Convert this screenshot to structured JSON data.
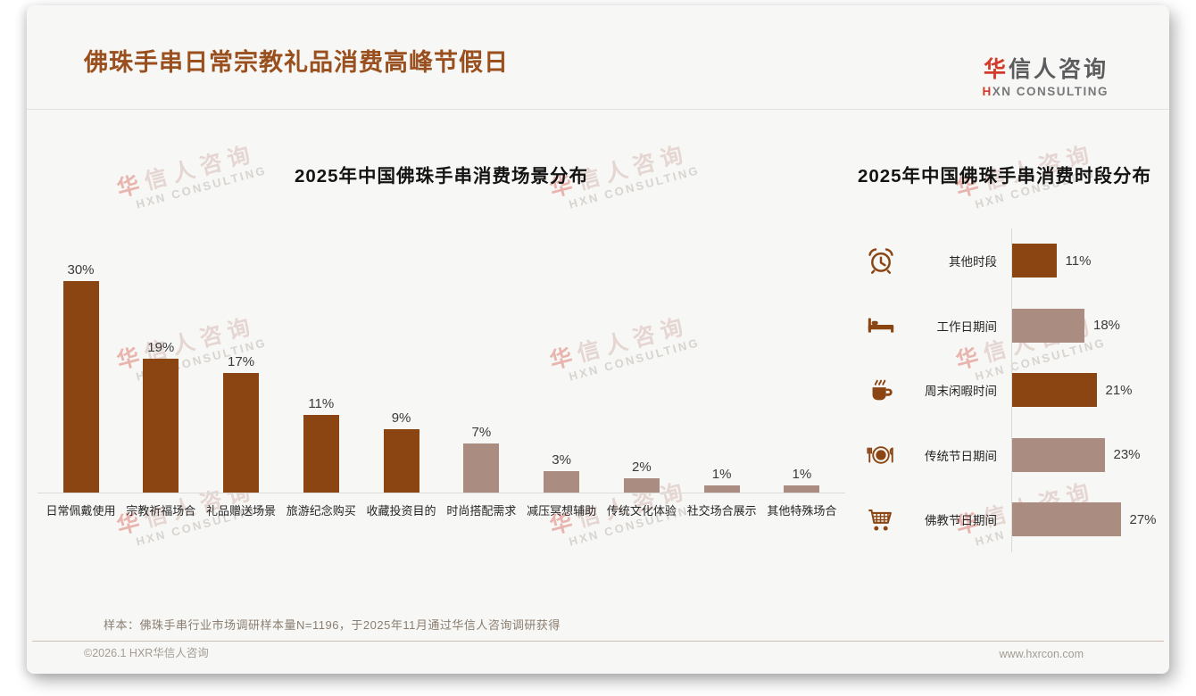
{
  "header": {
    "title": "佛珠手串日常宗教礼品消费高峰节假日",
    "logo": {
      "cn_accent": "华",
      "cn_rest": "信人咨询",
      "en_accent": "H",
      "en_rest": "XN CONSULTING"
    }
  },
  "watermark": {
    "cn_accent": "华",
    "cn_rest": "信人咨询",
    "en": "HXN CONSULTING"
  },
  "chart_data": [
    {
      "type": "bar",
      "orientation": "vertical",
      "title": "2025年中国佛珠手串消费场景分布",
      "categories": [
        "日常佩戴使用",
        "宗教祈福场合",
        "礼品赠送场景",
        "旅游纪念购买",
        "收藏投资目的",
        "时尚搭配需求",
        "减压冥想辅助",
        "传统文化体验",
        "社交场合展示",
        "其他特殊场合"
      ],
      "values": [
        30,
        19,
        17,
        11,
        9,
        7,
        3,
        2,
        1,
        1
      ],
      "unit": "%",
      "value_labels": [
        "30%",
        "19%",
        "17%",
        "11%",
        "9%",
        "7%",
        "3%",
        "2%",
        "1%",
        "1%"
      ],
      "bar_styles": [
        "dark",
        "dark",
        "dark",
        "dark",
        "dark",
        "light",
        "light",
        "light",
        "light",
        "light"
      ],
      "bar_palette": {
        "dark": "#8B4513",
        "light": "#AA8C80"
      },
      "ylim": [
        0,
        32
      ],
      "grid": false,
      "data_labels": "above-bar",
      "legend": "none"
    },
    {
      "type": "bar",
      "orientation": "horizontal",
      "title": "2025年中国佛珠手串消费时段分布",
      "categories": [
        "其他时段",
        "工作日期间",
        "周末闲暇时间",
        "传统节日期间",
        "佛教节日期间"
      ],
      "values": [
        11,
        18,
        21,
        23,
        27
      ],
      "unit": "%",
      "value_labels": [
        "11%",
        "18%",
        "21%",
        "23%",
        "27%"
      ],
      "icons": [
        "alarm-clock-icon",
        "bed-icon",
        "coffee-cup-icon",
        "dining-plate-icon",
        "shopping-cart-icon"
      ],
      "bar_styles": [
        "dark",
        "light",
        "dark",
        "light",
        "light"
      ],
      "bar_palette": {
        "dark": "#8B4513",
        "light": "#AA8C80"
      },
      "xlim": [
        0,
        30
      ],
      "grid": false,
      "data_labels": "right-of-bar",
      "legend": "none"
    }
  ],
  "footnote": "样本：佛珠手串行业市场调研样本量N=1196，于2025年11月通过华信人咨询调研获得",
  "footer": {
    "copyright": "©2026.1 HXR华信人咨询",
    "website": "www.hxrcon.com"
  },
  "colors": {
    "accent_dark_brown": "#8B4513",
    "accent_rosy_taupe": "#AA8C80",
    "title_brown": "#99501E",
    "logo_red": "#D43A2A",
    "card_background": "#F7F7F5"
  }
}
